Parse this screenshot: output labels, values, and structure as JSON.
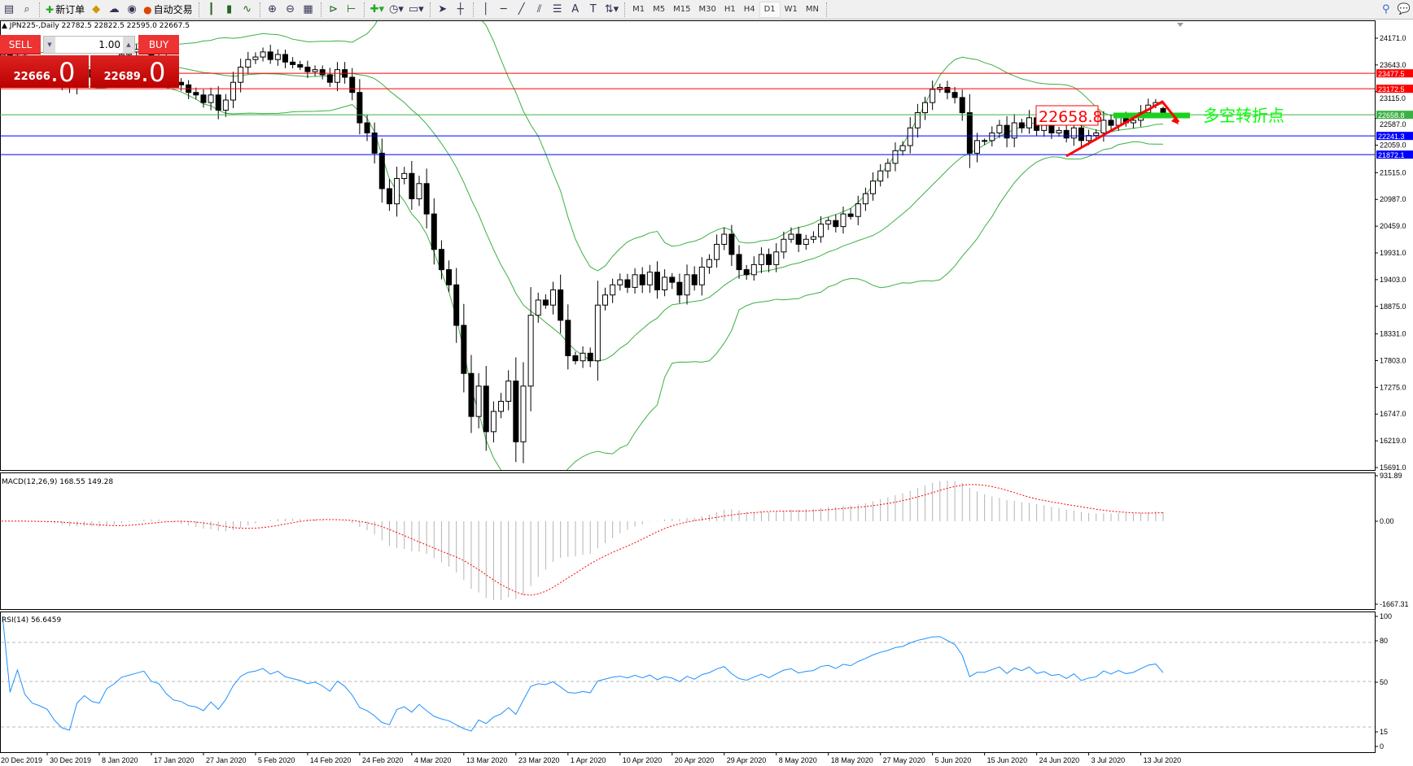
{
  "toolbar": {
    "new_order": "新订单",
    "auto_trading": "自动交易",
    "timeframes": [
      "M1",
      "M5",
      "M15",
      "M30",
      "H1",
      "H4",
      "D1",
      "W1",
      "MN"
    ],
    "active_timeframe": "D1"
  },
  "chart": {
    "header": "JPN225-,Daily  22782.5 22822.5 22595.0 22667.5",
    "symbol": "JPN225-",
    "timeframe": "Daily"
  },
  "trade_panel": {
    "sell_label": "SELL",
    "buy_label": "BUY",
    "lot": "1.00",
    "sell_price_main": "22666",
    "sell_price_frac": ".0",
    "buy_price_main": "22689",
    "buy_price_frac": ".0"
  },
  "annotation": {
    "price_box": "22658.8",
    "text": "多空转折点"
  },
  "colors": {
    "bull_body": "#ffffff",
    "bear_body": "#000000",
    "bands": "#3cb043",
    "macd_hist": "#b4b4b4",
    "macd_signal": "#ff0000",
    "rsi": "#1e90ff",
    "annotation_text": "#00ff00"
  },
  "chart_data": [
    {
      "type": "candlestick",
      "title": "JPN225-,Daily",
      "price_axis": [
        "24171.0",
        "23643.0",
        "23115.0",
        "22587.0",
        "22059.0",
        "21515.0",
        "20987.0",
        "20459.0",
        "19931.0",
        "19403.0",
        "18875.0",
        "18331.0",
        "17803.0",
        "17275.0",
        "16747.0",
        "16219.0",
        "15691.0"
      ],
      "ylim": [
        15691,
        24171
      ],
      "date_labels": [
        "20 Dec 2019",
        "30 Dec 2019",
        "8 Jan 2020",
        "17 Jan 2020",
        "27 Jan 2020",
        "5 Feb 2020",
        "14 Feb 2020",
        "24 Feb 2020",
        "4 Mar 2020",
        "13 Mar 2020",
        "23 Mar 2020",
        "1 Apr 2020",
        "10 Apr 2020",
        "20 Apr 2020",
        "29 Apr 2020",
        "8 May 2020",
        "18 May 2020",
        "27 May 2020",
        "5 Jun 2020",
        "15 Jun 2020",
        "24 Jun 2020",
        "3 Jul 2020",
        "13 Jul 2020"
      ],
      "closes": [
        23800,
        23850,
        23780,
        23830,
        23750,
        23700,
        23680,
        23650,
        23500,
        23300,
        23200,
        23450,
        23550,
        23400,
        23350,
        23600,
        23700,
        23850,
        23900,
        23950,
        24000,
        23800,
        23750,
        23500,
        23300,
        23250,
        23100,
        23050,
        22900,
        23050,
        22750,
        22950,
        23300,
        23600,
        23750,
        23800,
        23900,
        23750,
        23850,
        23700,
        23650,
        23600,
        23510,
        23550,
        23450,
        23300,
        23550,
        23400,
        23100,
        22500,
        22300,
        21900,
        21200,
        20900,
        21400,
        21500,
        21000,
        21300,
        20700,
        20000,
        19600,
        19300,
        18500,
        17550,
        16700,
        17300,
        16400,
        16800,
        17000,
        17400,
        16200,
        17300,
        18700,
        19000,
        18900,
        19200,
        18600,
        17900,
        17800,
        17950,
        17800,
        18900,
        19100,
        19300,
        19400,
        19250,
        19500,
        19300,
        19550,
        19200,
        19450,
        19350,
        19100,
        19500,
        19300,
        19650,
        19800,
        20100,
        20300,
        19900,
        19600,
        19500,
        19700,
        19900,
        19700,
        19950,
        20200,
        20300,
        20100,
        20200,
        20250,
        20500,
        20570,
        20450,
        20700,
        20650,
        20900,
        21100,
        21350,
        21550,
        21700,
        21950,
        22050,
        22400,
        22700,
        22900,
        23160,
        23200,
        23100,
        23000,
        22700,
        21900,
        22150,
        22150,
        22300,
        22450,
        22200,
        22500,
        22400,
        22600,
        22350,
        22450,
        22300,
        22350,
        22200,
        22400,
        22150,
        22250,
        22300,
        22550,
        22450,
        22600,
        22500,
        22550,
        22700,
        22850,
        22900,
        22668
      ],
      "last_bar": {
        "open": 22782.5,
        "high": 22822.5,
        "low": 22595.0,
        "close": 22667.5
      },
      "horizontal_lines": [
        {
          "price": 23477.5,
          "label": "23477.5",
          "color": "#ff0000"
        },
        {
          "price": 23172.5,
          "label": "23172.5",
          "color": "#ff0000"
        },
        {
          "price": 22658.8,
          "label": "22658.8",
          "color": "#3cb043"
        },
        {
          "price": 22241.3,
          "label": "22241.3",
          "color": "#0000ff"
        },
        {
          "price": 21872.1,
          "label": "21872.1",
          "color": "#0000ff"
        }
      ],
      "indicator": "Bollinger Bands (20,2)"
    },
    {
      "type": "bar+line",
      "title": "MACD(12,26,9) 168.55 149.28",
      "axis": [
        "931.89",
        "0.00",
        "-1667.31"
      ],
      "ylim": [
        -1667.31,
        931.89
      ],
      "main": 168.55,
      "signal": 149.28
    },
    {
      "type": "line",
      "title": "RSI(14) 56.6459",
      "axis": [
        "100",
        "80",
        "50",
        "15",
        "0"
      ],
      "levels": [
        80,
        50,
        15
      ],
      "ylim": [
        0,
        100
      ],
      "value": 56.6459
    }
  ]
}
